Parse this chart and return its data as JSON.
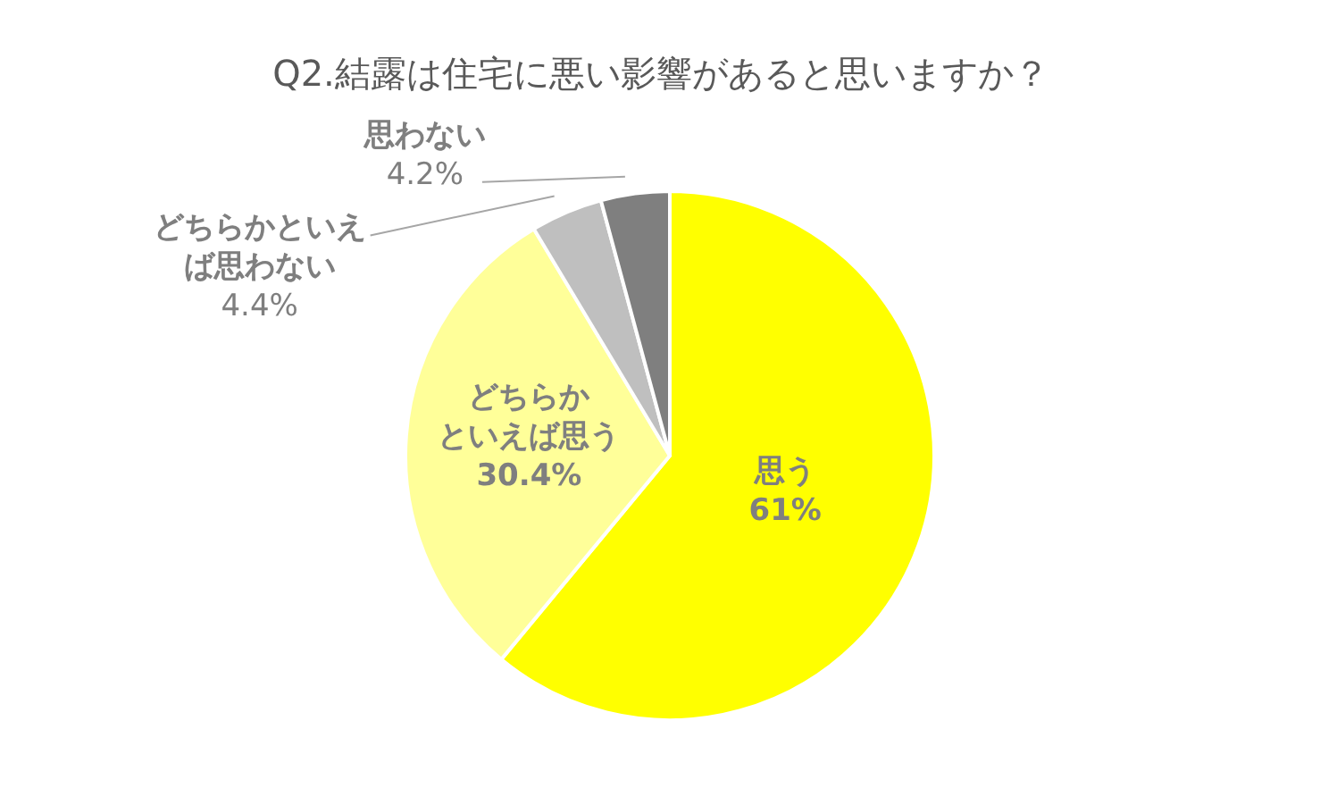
{
  "chart_data": {
    "type": "pie",
    "title": "Q2.結露は住宅に悪い影響があると思いますか？",
    "categories": [
      "思う",
      "どちらかといえば思う",
      "どちらかといえば思わない",
      "思わない"
    ],
    "values": [
      61,
      30.4,
      4.4,
      4.2
    ],
    "value_labels": [
      "61%",
      "30.4%",
      "4.4%",
      "4.2%"
    ],
    "colors": [
      "#ffff00",
      "#ffff99",
      "#bfbfbf",
      "#7f7f7f"
    ],
    "legend": false
  }
}
